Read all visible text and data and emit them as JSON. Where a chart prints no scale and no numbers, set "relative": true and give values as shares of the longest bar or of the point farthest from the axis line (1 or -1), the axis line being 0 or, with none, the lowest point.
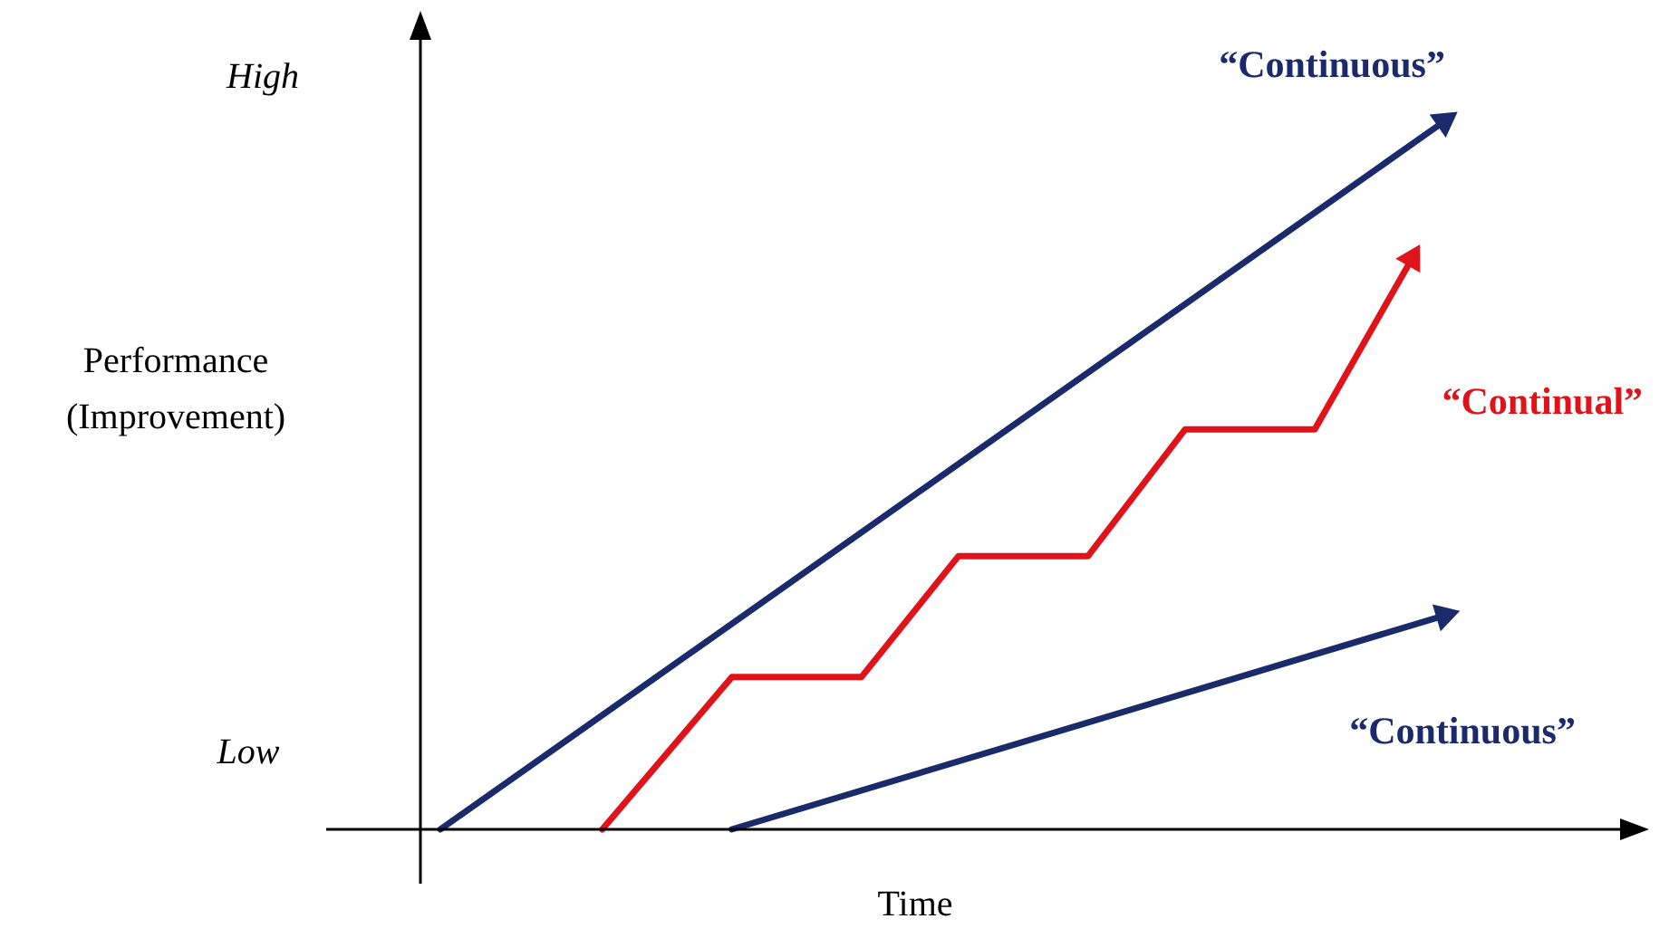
{
  "chart_data": {
    "type": "line",
    "relative": true,
    "xlabel": "Time",
    "ylabel": "Performance (Improvement)",
    "annotations": [
      "High",
      "Low"
    ],
    "legend": false,
    "line_style": "solid",
    "categories": [
      null,
      null,
      null,
      null,
      null,
      null,
      null,
      null,
      null,
      null,
      null,
      null,
      null,
      null,
      null,
      null,
      null,
      null,
      null,
      null,
      null,
      null,
      null,
      null,
      null,
      null,
      null,
      null,
      null,
      null,
      null,
      null
    ],
    "series": [
      {
        "name": "“Continuous”",
        "color": "#1b2a6b",
        "values": [
          0,
          null,
          null,
          null,
          null,
          null,
          null,
          null,
          null,
          null,
          null,
          null,
          null,
          null,
          null,
          null,
          null,
          null,
          null,
          null,
          null,
          null,
          null,
          null,
          null,
          null,
          null,
          null,
          null,
          null,
          null,
          1
        ]
      },
      {
        "name": "“Continual”",
        "color": "#e0131a",
        "values": [
          null,
          null,
          null,
          null,
          null,
          0,
          null,
          null,
          null,
          0.215,
          null,
          null,
          null,
          0.215,
          null,
          null,
          0.386,
          null,
          null,
          null,
          0.386,
          null,
          null,
          0.565,
          null,
          null,
          null,
          0.565,
          null,
          null,
          0.806,
          null
        ]
      },
      {
        "name": "“Continuous”",
        "color": "#1b2a6b",
        "values": [
          null,
          null,
          null,
          null,
          null,
          null,
          null,
          null,
          null,
          0,
          null,
          null,
          null,
          null,
          null,
          null,
          null,
          null,
          null,
          null,
          null,
          null,
          null,
          null,
          null,
          null,
          null,
          null,
          null,
          null,
          null,
          0.302
        ]
      }
    ]
  }
}
